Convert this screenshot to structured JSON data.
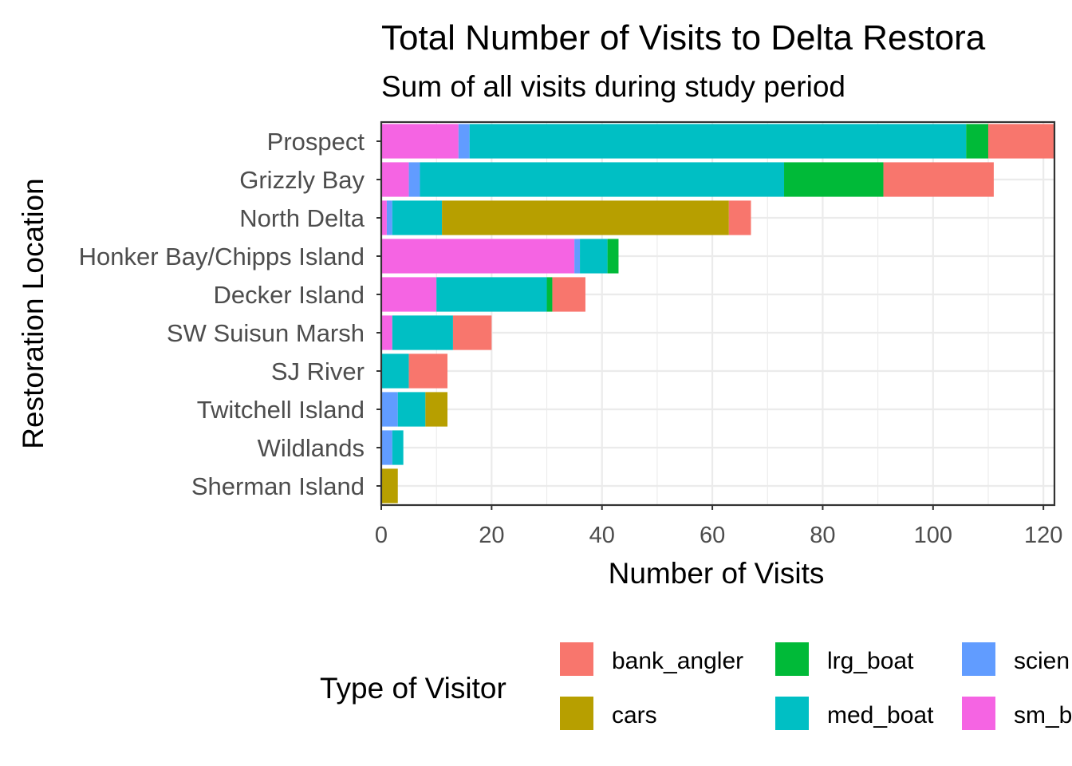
{
  "chart_data": {
    "type": "bar",
    "orientation": "horizontal",
    "stacked": true,
    "title": "Total Number of Visits to Delta Restora",
    "subtitle": "Sum of all visits during study period",
    "xlabel": "Number of Visits",
    "ylabel": "Restoration Location",
    "xlim": [
      0,
      122
    ],
    "xticks": [
      0,
      20,
      40,
      60,
      80,
      100,
      120
    ],
    "grid": true,
    "legend_position": "bottom",
    "legend_title": "Type of Visitor",
    "categories": [
      "Sherman Island",
      "Wildlands",
      "Twitchell Island",
      "SJ River",
      "SW Suisun Marsh",
      "Decker Island",
      "Honker Bay/Chipps Island",
      "North Delta",
      "Grizzly Bay",
      "Prospect"
    ],
    "stack_order": [
      "sm_b",
      "scien",
      "med_boat",
      "lrg_boat",
      "cars",
      "bank_angler"
    ],
    "series": [
      {
        "name": "bank_angler",
        "color": "#F8766D",
        "values": [
          0,
          0,
          0,
          7,
          7,
          6,
          0,
          4,
          20,
          12
        ]
      },
      {
        "name": "cars",
        "color": "#B79F00",
        "values": [
          3,
          0,
          4,
          0,
          0,
          0,
          0,
          52,
          0,
          0
        ]
      },
      {
        "name": "lrg_boat",
        "color": "#00BA38",
        "values": [
          0,
          0,
          0,
          0,
          0,
          1,
          2,
          0,
          18,
          4
        ]
      },
      {
        "name": "med_boat",
        "color": "#00BFC4",
        "values": [
          0,
          2,
          5,
          5,
          11,
          20,
          5,
          9,
          66,
          90
        ]
      },
      {
        "name": "scien",
        "color": "#619CFF",
        "values": [
          0,
          2,
          3,
          0,
          0,
          0,
          1,
          1,
          2,
          2
        ]
      },
      {
        "name": "sm_b",
        "color": "#F564E3",
        "values": [
          0,
          0,
          0,
          0,
          2,
          10,
          35,
          1,
          5,
          14
        ]
      }
    ],
    "legend_rows": [
      [
        "bank_angler",
        "lrg_boat",
        "scien"
      ],
      [
        "cars",
        "med_boat",
        "sm_b"
      ]
    ]
  }
}
